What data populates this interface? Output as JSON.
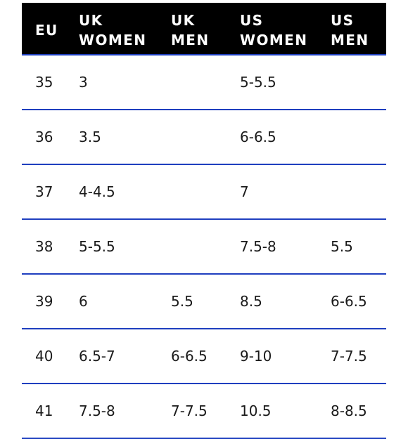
{
  "table": {
    "headers": [
      {
        "lines": [
          "EU"
        ]
      },
      {
        "lines": [
          "UK",
          "WOMEN"
        ]
      },
      {
        "lines": [
          "UK",
          "MEN"
        ]
      },
      {
        "lines": [
          "US",
          "WOMEN"
        ]
      },
      {
        "lines": [
          "US",
          "MEN"
        ]
      }
    ],
    "rows": [
      [
        "35",
        "3",
        "",
        "5-5.5",
        ""
      ],
      [
        "36",
        "3.5",
        "",
        "6-6.5",
        ""
      ],
      [
        "37",
        "4-4.5",
        "",
        "7",
        ""
      ],
      [
        "38",
        "5-5.5",
        "",
        "7.5-8",
        "5.5"
      ],
      [
        "39",
        "6",
        "5.5",
        "8.5",
        "6-6.5"
      ],
      [
        "40",
        "6.5-7",
        "6-6.5",
        "9-10",
        "7-7.5"
      ],
      [
        "41",
        "7.5-8",
        "7-7.5",
        "10.5",
        "8-8.5"
      ]
    ]
  },
  "colors": {
    "header_background": "#000000",
    "header_text": "#ffffff",
    "row_divider": "#1f3fbf",
    "cell_text": "#1a1a1a"
  }
}
